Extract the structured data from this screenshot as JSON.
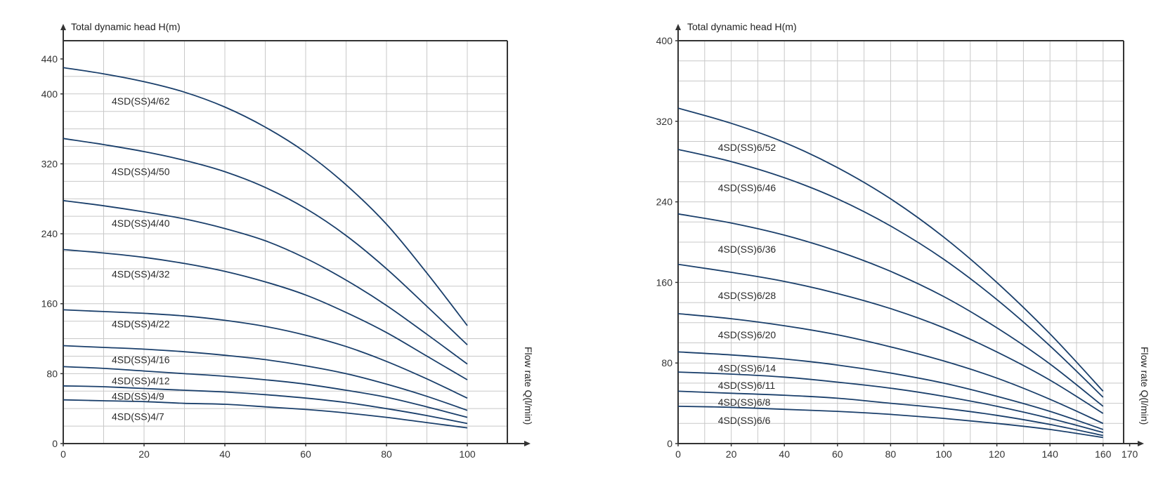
{
  "chart_data": [
    {
      "type": "line",
      "title": "",
      "ylabel": "Total dynamic head H(m)",
      "xlabel": "Flow rate Q(l/min)",
      "xlim": [
        0,
        110
      ],
      "ylim": [
        0,
        440
      ],
      "x_ticks": [
        "0",
        "20",
        "40",
        "60",
        "80",
        "100"
      ],
      "y_ticks": [
        "0",
        "80",
        "160",
        "240",
        "320",
        "400",
        "440"
      ],
      "grid": true,
      "colors": {
        "line": "#1a3f6b",
        "grid": "#c8c8c8",
        "axis": "#333333"
      },
      "x": [
        0,
        10,
        20,
        30,
        40,
        50,
        60,
        70,
        80,
        90,
        100
      ],
      "series": [
        {
          "name": "4SD(SS)4/62",
          "values": [
            430,
            423,
            414,
            402,
            385,
            362,
            333,
            296,
            251,
            195,
            135
          ]
        },
        {
          "name": "4SD(SS)4/50",
          "values": [
            349,
            342,
            334,
            324,
            311,
            293,
            269,
            238,
            200,
            157,
            113
          ]
        },
        {
          "name": "4SD(SS)4/40",
          "values": [
            278,
            272,
            265,
            257,
            246,
            232,
            212,
            187,
            158,
            125,
            91
          ]
        },
        {
          "name": "4SD(SS)4/32",
          "values": [
            222,
            218,
            213,
            206,
            197,
            185,
            170,
            150,
            127,
            100,
            73
          ]
        },
        {
          "name": "4SD(SS)4/22",
          "values": [
            153,
            151,
            149,
            146,
            141,
            134,
            124,
            111,
            94,
            74,
            52
          ]
        },
        {
          "name": "4SD(SS)4/16",
          "values": [
            112,
            110,
            108,
            105,
            101,
            96,
            89,
            80,
            68,
            54,
            38
          ]
        },
        {
          "name": "4SD(SS)4/12",
          "values": [
            88,
            86,
            83,
            80,
            77,
            73,
            68,
            61,
            53,
            42,
            30
          ]
        },
        {
          "name": "4SD(SS)4/9",
          "values": [
            66,
            65,
            63,
            61,
            59,
            56,
            52,
            47,
            40,
            32,
            23
          ]
        },
        {
          "name": "4SD(SS)4/7",
          "values": [
            50,
            49,
            48,
            46,
            45,
            42,
            39,
            35,
            30,
            24,
            18
          ]
        }
      ],
      "label_positions": [
        {
          "x": 12,
          "y": 392
        },
        {
          "x": 12,
          "y": 311
        },
        {
          "x": 12,
          "y": 252
        },
        {
          "x": 12,
          "y": 194
        },
        {
          "x": 12,
          "y": 137
        },
        {
          "x": 12,
          "y": 96
        },
        {
          "x": 12,
          "y": 72
        },
        {
          "x": 12,
          "y": 54
        },
        {
          "x": 12,
          "y": 31
        }
      ]
    },
    {
      "type": "line",
      "title": "",
      "ylabel": "Total dynamic head H(m)",
      "xlabel": "Flow rate Q(l/min)",
      "xlim": [
        0,
        170
      ],
      "ylim": [
        0,
        400
      ],
      "x_ticks": [
        "0",
        "20",
        "40",
        "60",
        "80",
        "100",
        "120",
        "140",
        "160",
        "170"
      ],
      "y_ticks": [
        "0",
        "80",
        "160",
        "240",
        "320",
        "400"
      ],
      "grid": true,
      "colors": {
        "line": "#1a3f6b",
        "grid": "#c8c8c8",
        "axis": "#333333"
      },
      "x": [
        0,
        20,
        40,
        60,
        80,
        100,
        120,
        140,
        160
      ],
      "series": [
        {
          "name": "4SD(SS)6/52",
          "values": [
            333,
            318,
            299,
            274,
            243,
            205,
            160,
            109,
            52
          ]
        },
        {
          "name": "4SD(SS)6/46",
          "values": [
            292,
            280,
            264,
            243,
            216,
            183,
            143,
            97,
            46
          ]
        },
        {
          "name": "4SD(SS)6/36",
          "values": [
            228,
            219,
            207,
            191,
            171,
            146,
            115,
            79,
            37
          ]
        },
        {
          "name": "4SD(SS)6/28",
          "values": [
            178,
            170,
            161,
            149,
            134,
            115,
            91,
            63,
            30
          ]
        },
        {
          "name": "4SD(SS)6/20",
          "values": [
            129,
            124,
            117,
            108,
            96,
            82,
            65,
            44,
            20
          ]
        },
        {
          "name": "4SD(SS)6/14",
          "values": [
            91,
            88,
            84,
            78,
            70,
            60,
            47,
            32,
            14
          ]
        },
        {
          "name": "4SD(SS)6/11",
          "values": [
            71,
            69,
            66,
            61,
            55,
            47,
            37,
            25,
            11
          ]
        },
        {
          "name": "4SD(SS)6/8",
          "values": [
            52,
            50,
            48,
            45,
            40,
            35,
            28,
            19,
            8
          ]
        },
        {
          "name": "4SD(SS)6/6",
          "values": [
            37,
            36,
            34,
            32,
            29,
            25,
            20,
            14,
            6
          ]
        }
      ],
      "label_positions": [
        {
          "x": 15,
          "y": 294
        },
        {
          "x": 15,
          "y": 254
        },
        {
          "x": 15,
          "y": 193
        },
        {
          "x": 15,
          "y": 147
        },
        {
          "x": 15,
          "y": 108
        },
        {
          "x": 15,
          "y": 75
        },
        {
          "x": 15,
          "y": 58
        },
        {
          "x": 15,
          "y": 41
        },
        {
          "x": 15,
          "y": 23
        }
      ]
    }
  ]
}
